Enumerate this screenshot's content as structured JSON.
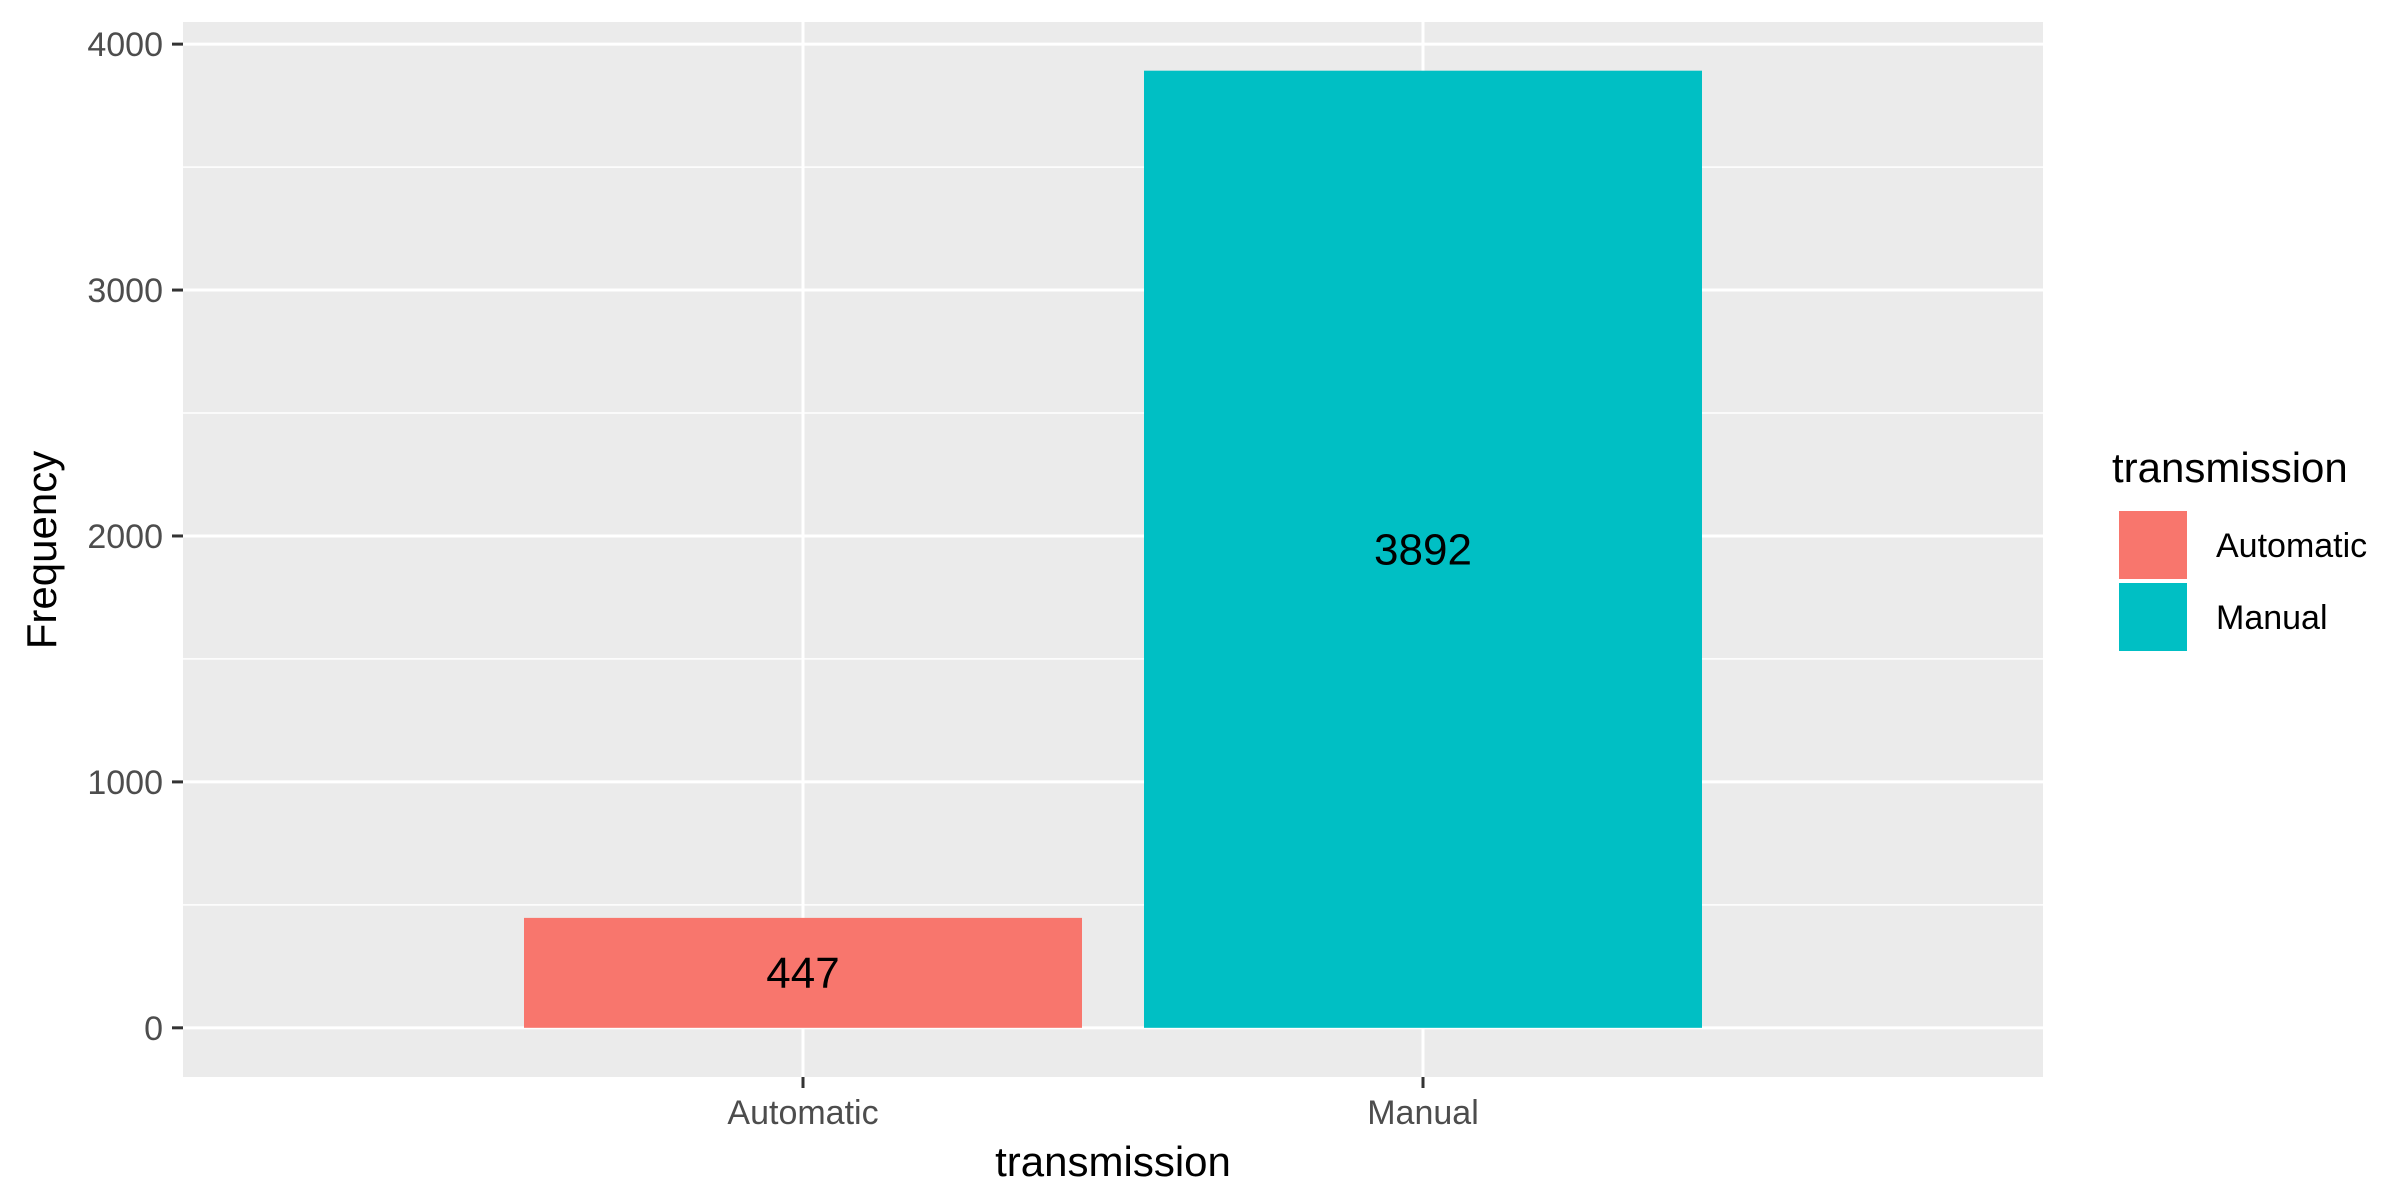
{
  "chart_data": {
    "type": "bar",
    "categories": [
      "Automatic",
      "Manual"
    ],
    "values": [
      447,
      3892
    ],
    "data_labels": [
      "447",
      "3892"
    ],
    "colors": [
      "#F8766D",
      "#00BFC4"
    ],
    "xlabel": "transmission",
    "ylabel": "Frequency",
    "ylim": [
      -200,
      4090
    ],
    "y_ticks": [
      0,
      1000,
      2000,
      3000,
      4000
    ],
    "y_tick_labels": [
      "0",
      "1000",
      "2000",
      "3000",
      "4000"
    ],
    "grid": true,
    "panel_background": "#EBEBEB",
    "legend": {
      "title": "transmission",
      "position": "right",
      "entries": [
        "Automatic",
        "Manual"
      ]
    }
  }
}
